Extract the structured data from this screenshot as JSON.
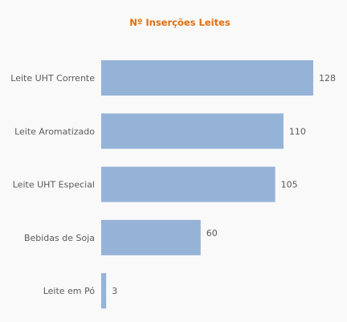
{
  "chart_data": {
    "type": "bar",
    "orientation": "horizontal",
    "title": "Nº Inserções Leites",
    "categories": [
      "Leite UHT Corrente",
      "Leite Aromatizado",
      "Leite UHT Especial",
      "Bebidas de Soja",
      "Leite em Pó"
    ],
    "values": [
      128,
      110,
      105,
      60,
      3
    ],
    "xlim": [
      0,
      128
    ],
    "grid": false,
    "legend": "none",
    "data_labels": true,
    "colors": {
      "bar": "#95b3d7",
      "title": "#e36c0a",
      "text": "#5a5a5a",
      "background": "#f9f9f9"
    }
  }
}
